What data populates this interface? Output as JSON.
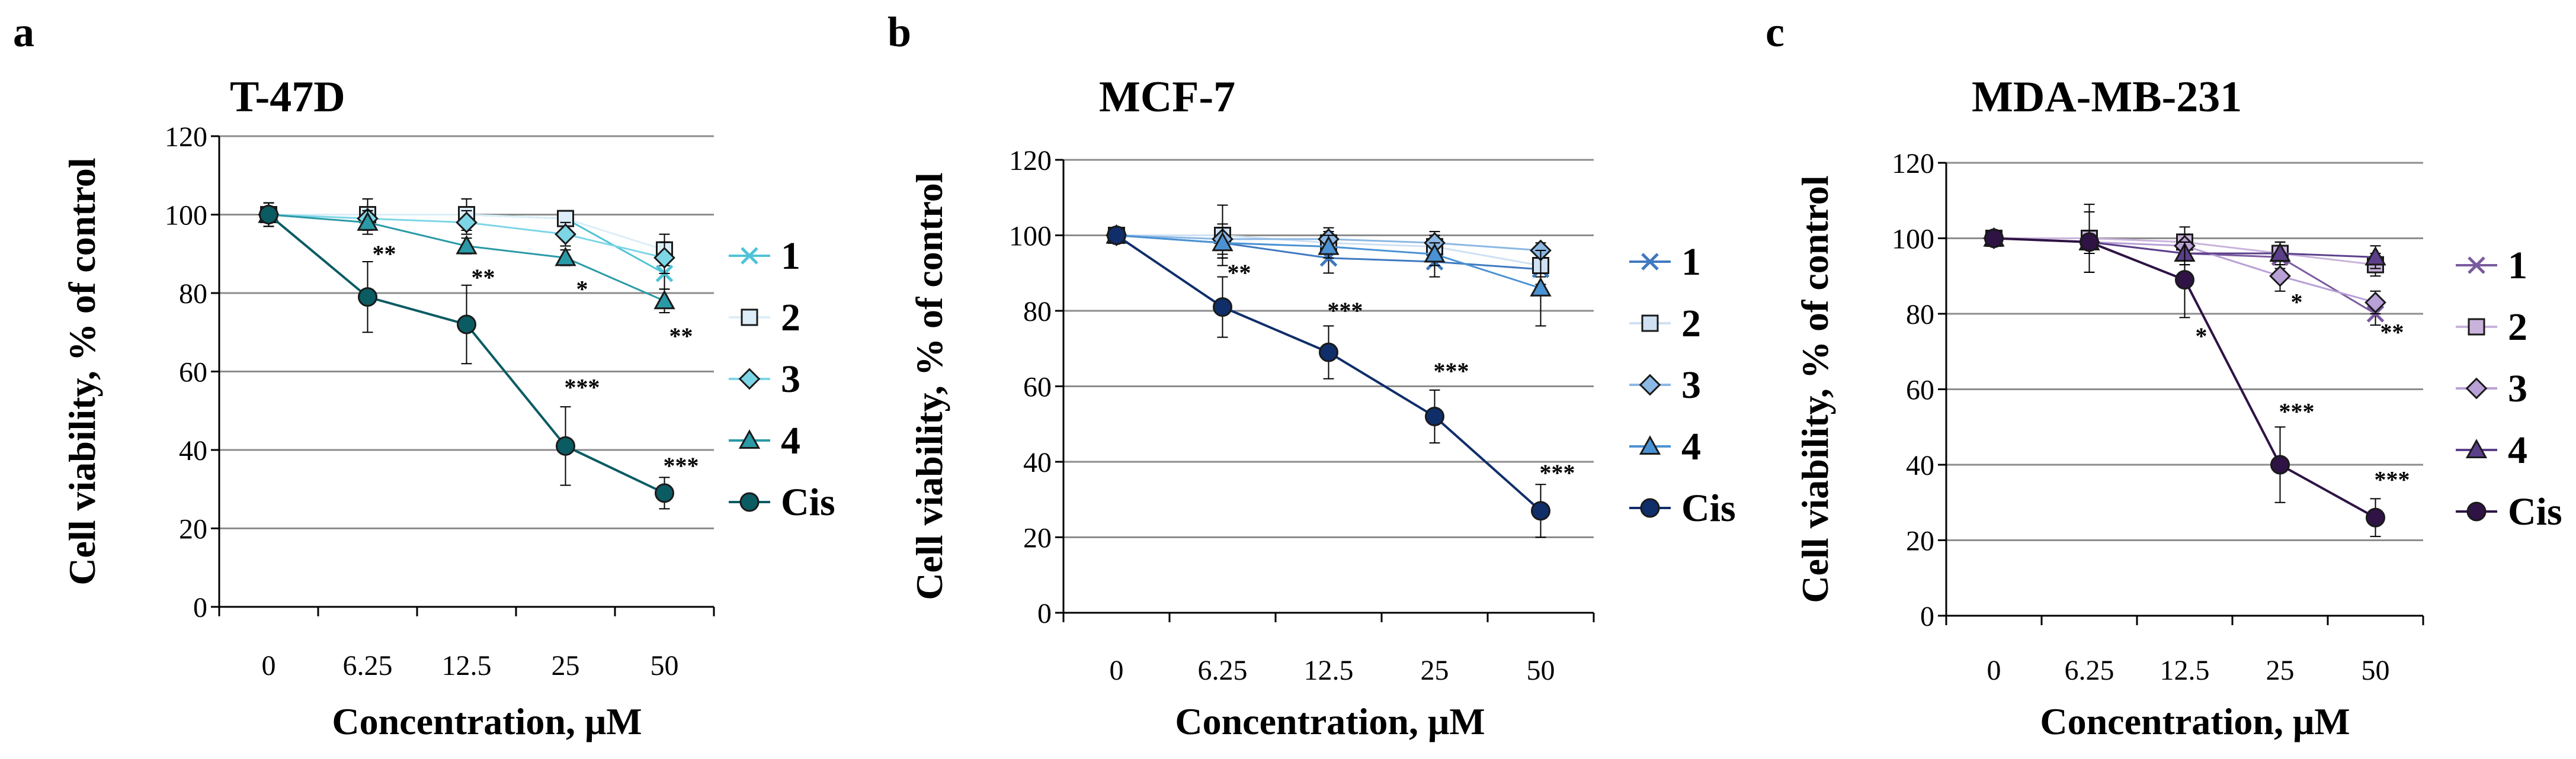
{
  "chart_data": [
    {
      "panel": "a",
      "title": "T-47D",
      "type": "line",
      "categories": [
        "0",
        "6.25",
        "12.5",
        "25",
        "50"
      ],
      "xlabel": "Concentration, μM",
      "ylabel": "Cell viability, % of control",
      "ylim": [
        0,
        120
      ],
      "yticks": [
        "0",
        "20",
        "40",
        "60",
        "80",
        "100",
        "120"
      ],
      "grid": true,
      "legend_position": "right",
      "series": [
        {
          "name": "1",
          "marker": "x",
          "color": "#4fc3d6",
          "values": [
            100,
            100,
            100,
            99,
            85
          ],
          "errors": [
            2,
            2,
            2,
            2,
            4
          ]
        },
        {
          "name": "2",
          "marker": "square",
          "color": "#dceef8",
          "values": [
            100,
            100,
            100,
            99,
            91
          ],
          "errors": [
            3,
            4,
            4,
            2,
            4
          ]
        },
        {
          "name": "3",
          "marker": "diamond",
          "color": "#7dd6e6",
          "values": [
            100,
            99,
            98,
            95,
            89
          ],
          "errors": [
            3,
            2,
            3,
            3,
            4
          ]
        },
        {
          "name": "4",
          "marker": "triangle",
          "color": "#2a9aa6",
          "values": [
            100,
            98,
            92,
            89,
            78
          ],
          "errors": [
            3,
            3,
            2,
            2,
            3
          ]
        },
        {
          "name": "Cis",
          "marker": "circle",
          "color": "#0b5b63",
          "values": [
            100,
            79,
            72,
            41,
            29
          ],
          "errors": [
            3,
            9,
            10,
            10,
            4
          ]
        }
      ],
      "annotations": [
        {
          "x": "6.25",
          "y": 88,
          "text": "**"
        },
        {
          "x": "12.5",
          "y": 82,
          "text": "**"
        },
        {
          "x": "25",
          "y": 79,
          "text": "*"
        },
        {
          "x": "25",
          "y": 54,
          "text": "***"
        },
        {
          "x": "50",
          "y": 67,
          "text": "**"
        },
        {
          "x": "50",
          "y": 34,
          "text": "***"
        }
      ]
    },
    {
      "panel": "b",
      "title": "MCF-7",
      "type": "line",
      "categories": [
        "0",
        "6.25",
        "12.5",
        "25",
        "50"
      ],
      "xlabel": "Concentration, μM",
      "ylabel": "Cell viability, % of control",
      "ylim": [
        0,
        120
      ],
      "yticks": [
        "0",
        "20",
        "40",
        "60",
        "80",
        "100",
        "120"
      ],
      "grid": true,
      "legend_position": "right",
      "series": [
        {
          "name": "1",
          "marker": "x",
          "color": "#3f79c0",
          "values": [
            100,
            98,
            94,
            93,
            91
          ],
          "errors": [
            2,
            4,
            4,
            4,
            4
          ]
        },
        {
          "name": "2",
          "marker": "square",
          "color": "#cfe1f3",
          "values": [
            100,
            100,
            98,
            97,
            92
          ],
          "errors": [
            2,
            8,
            3,
            3,
            3
          ]
        },
        {
          "name": "3",
          "marker": "diamond",
          "color": "#8cb8e4",
          "values": [
            100,
            99,
            99,
            98,
            96
          ],
          "errors": [
            2,
            4,
            3,
            3,
            2
          ]
        },
        {
          "name": "4",
          "marker": "triangle",
          "color": "#4b92d4",
          "values": [
            100,
            98,
            97,
            95,
            86
          ],
          "errors": [
            2,
            4,
            3,
            3,
            10
          ]
        },
        {
          "name": "Cis",
          "marker": "circle",
          "color": "#0f2e6a",
          "values": [
            100,
            81,
            69,
            52,
            27
          ],
          "errors": [
            2,
            8,
            7,
            7,
            7
          ]
        }
      ],
      "annotations": [
        {
          "x": "6.25",
          "y": 88,
          "text": "**"
        },
        {
          "x": "12.5",
          "y": 78,
          "text": "***"
        },
        {
          "x": "25",
          "y": 62,
          "text": "***"
        },
        {
          "x": "50",
          "y": 35,
          "text": "***"
        }
      ]
    },
    {
      "panel": "c",
      "title": "MDA-MB-231",
      "type": "line",
      "categories": [
        "0",
        "6.25",
        "12.5",
        "25",
        "50"
      ],
      "xlabel": "Concentration, μM",
      "ylabel": "Cell viability, % of control",
      "ylim": [
        0,
        120
      ],
      "yticks": [
        "0",
        "20",
        "40",
        "60",
        "80",
        "100",
        "120"
      ],
      "grid": true,
      "legend_position": "right",
      "series": [
        {
          "name": "1",
          "marker": "x",
          "color": "#7a5a9e",
          "values": [
            100,
            99,
            96,
            95,
            80
          ],
          "errors": [
            2,
            3,
            3,
            3,
            3
          ]
        },
        {
          "name": "2",
          "marker": "square",
          "color": "#c9b3dc",
          "values": [
            100,
            100,
            99,
            96,
            93
          ],
          "errors": [
            2,
            9,
            4,
            3,
            3
          ]
        },
        {
          "name": "3",
          "marker": "diamond",
          "color": "#b9a0d6",
          "values": [
            100,
            99,
            98,
            90,
            83
          ],
          "errors": [
            2,
            3,
            3,
            4,
            3
          ]
        },
        {
          "name": "4",
          "marker": "triangle",
          "color": "#5c3f8a",
          "values": [
            100,
            99,
            96,
            96,
            95
          ],
          "errors": [
            2,
            3,
            3,
            3,
            3
          ]
        },
        {
          "name": "Cis",
          "marker": "circle",
          "color": "#2e1344",
          "values": [
            100,
            99,
            89,
            40,
            26
          ],
          "errors": [
            2,
            8,
            10,
            10,
            5
          ]
        }
      ],
      "annotations": [
        {
          "x": "12.5",
          "y": 72,
          "text": "*"
        },
        {
          "x": "25",
          "y": 81,
          "text": "*"
        },
        {
          "x": "50",
          "y": 73,
          "text": "**"
        },
        {
          "x": "25",
          "y": 52,
          "text": "***"
        },
        {
          "x": "50",
          "y": 34,
          "text": "***"
        }
      ]
    }
  ]
}
